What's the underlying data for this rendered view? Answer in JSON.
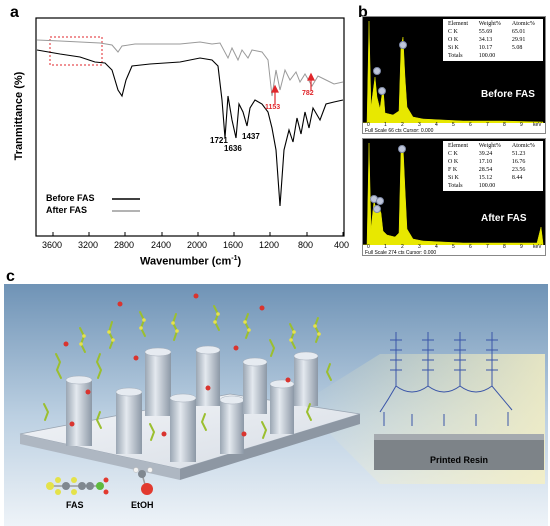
{
  "panel_a": {
    "label": "a",
    "y_axis_title": "Tranmittance (%)",
    "x_axis_title": "Wavenumber (cm",
    "x_axis_sup": "-1",
    "x_axis_close": ")",
    "x_ticks": [
      "3600",
      "3200",
      "2800",
      "2400",
      "2000",
      "1600",
      "1200",
      "800",
      "400"
    ],
    "peaks": [
      {
        "label": "1721",
        "color": "#000000"
      },
      {
        "label": "1636",
        "color": "#000000"
      },
      {
        "label": "1437",
        "color": "#000000"
      },
      {
        "label": "1153",
        "color": "#e0262b"
      },
      {
        "label": "782",
        "color": "#e0262b"
      }
    ],
    "legend": [
      {
        "name": "Before FAS",
        "color": "#000000"
      },
      {
        "name": "After FAS",
        "color": "#9a9a9a"
      }
    ]
  },
  "panel_b": {
    "label": "b",
    "spectra": [
      {
        "badge": "Before FAS",
        "headers": [
          "Element",
          "Weight%",
          "Atomic%"
        ],
        "rows": [
          [
            "C K",
            "55.69",
            "65.01"
          ],
          [
            "O K",
            "34.13",
            "29.91"
          ],
          [
            "Si K",
            "10.17",
            "5.08"
          ]
        ],
        "total_label": "Totals",
        "total_value": "100.00",
        "footer": "Full Scale 66 cts Cursor: 0.000",
        "kev": "keV",
        "axis": [
          "0",
          "1",
          "2",
          "3",
          "4",
          "5",
          "6",
          "7",
          "8",
          "9"
        ]
      },
      {
        "badge": "After FAS",
        "headers": [
          "Element",
          "Weight%",
          "Atomic%"
        ],
        "rows": [
          [
            "C K",
            "39.24",
            "51.23"
          ],
          [
            "O K",
            "17.10",
            "16.76"
          ],
          [
            "F K",
            "28.54",
            "23.56"
          ],
          [
            "Si K",
            "15.12",
            "8.44"
          ]
        ],
        "total_label": "Totals",
        "total_value": "100.00",
        "footer": "Full Scale 274 cts Cursor: 0.000",
        "kev": "keV",
        "axis": [
          "0",
          "1",
          "2",
          "3",
          "4",
          "5",
          "6",
          "7",
          "8",
          "9"
        ]
      }
    ]
  },
  "panel_c": {
    "label": "c",
    "resin_label": "Printed Resin",
    "legend": [
      {
        "name": "FAS"
      },
      {
        "name": "EtOH"
      }
    ]
  }
}
